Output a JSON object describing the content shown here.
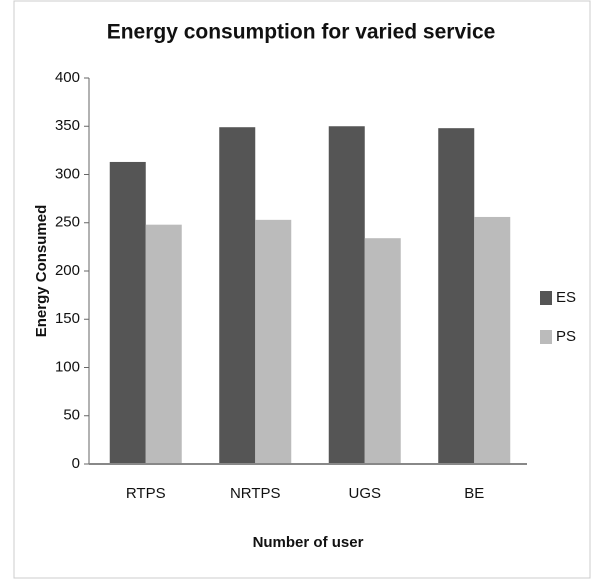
{
  "chart_data": {
    "type": "bar",
    "title": "Energy consumption for varied service",
    "xlabel": "Number of user",
    "ylabel": "Energy Consumed",
    "categories": [
      "RTPS",
      "NRTPS",
      "UGS",
      "BE"
    ],
    "series": [
      {
        "name": "ES",
        "color": "#555555",
        "values": [
          313,
          349,
          350,
          348
        ]
      },
      {
        "name": "PS",
        "color": "#bbbbbb",
        "values": [
          248,
          253,
          234,
          256
        ]
      }
    ],
    "ylim": [
      0,
      400
    ],
    "yticks": [
      0,
      50,
      100,
      150,
      200,
      250,
      300,
      350,
      400
    ],
    "grid": false,
    "legend": "right"
  }
}
